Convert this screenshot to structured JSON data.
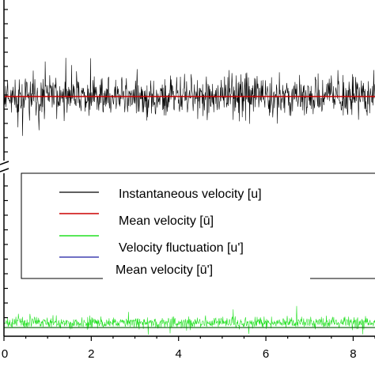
{
  "chart_data": {
    "type": "line",
    "title": "",
    "xlabel": "",
    "ylabel": "",
    "xlim": [
      0,
      8.5
    ],
    "x_ticks": [
      "0",
      "2",
      "4",
      "6",
      "8"
    ],
    "axis_break": true,
    "grid": false,
    "legend_position": "center",
    "series": [
      {
        "name": "Instantaneous velocity [u]",
        "color": "#000000",
        "panel": "top",
        "kind": "noisy-signal"
      },
      {
        "name": "Mean velocity [ū]",
        "color": "#cc0000",
        "panel": "top",
        "kind": "constant"
      },
      {
        "name": "Velocity fluctuation [u']",
        "color": "#22e022",
        "panel": "bottom",
        "kind": "noisy-signal"
      },
      {
        "name": "Mean velocity [ū']",
        "color": "#1a1aa0",
        "panel": "bottom",
        "kind": "constant"
      }
    ]
  }
}
